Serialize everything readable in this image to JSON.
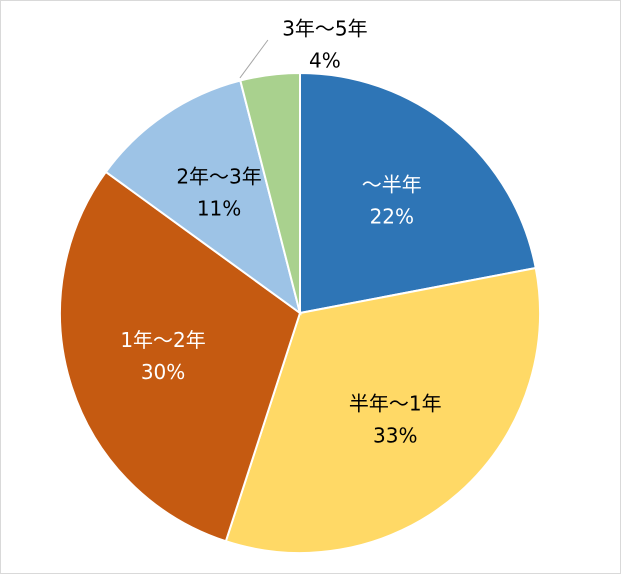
{
  "chart_data": {
    "type": "pie",
    "categories": [
      "～半年",
      "半年～1年",
      "1年～2年",
      "2年～3年",
      "3年～5年"
    ],
    "values": [
      22,
      33,
      30,
      11,
      4
    ],
    "value_labels": [
      "22%",
      "33%",
      "30%",
      "11%",
      "4%"
    ],
    "colors": [
      "#2e75b6",
      "#ffd966",
      "#c55a11",
      "#9dc3e6",
      "#a9d18e"
    ]
  }
}
